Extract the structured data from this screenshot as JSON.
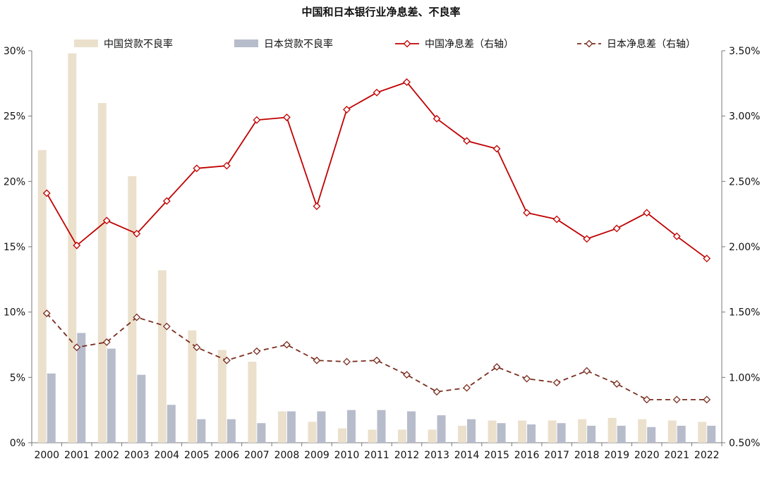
{
  "chart_data": {
    "type": "bar",
    "title": "中国和日本银行业净息差、不良率",
    "categories": [
      "2000",
      "2001",
      "2002",
      "2003",
      "2004",
      "2005",
      "2006",
      "2007",
      "2008",
      "2009",
      "2010",
      "2011",
      "2012",
      "2013",
      "2014",
      "2015",
      "2016",
      "2017",
      "2018",
      "2019",
      "2020",
      "2021",
      "2022"
    ],
    "left_axis": {
      "ylim": [
        0,
        30
      ],
      "ticks": [
        "0%",
        "5%",
        "10%",
        "15%",
        "20%",
        "25%",
        "30%"
      ]
    },
    "right_axis": {
      "ylim": [
        0.5,
        3.5
      ],
      "ticks": [
        "0.50%",
        "1.00%",
        "1.50%",
        "2.00%",
        "2.50%",
        "3.00%",
        "3.50%"
      ]
    },
    "series": [
      {
        "name": "中国贷款不良率",
        "kind": "bar",
        "axis": "left",
        "color": "#ebe0cc",
        "values": [
          22.4,
          29.8,
          26.0,
          20.4,
          13.2,
          8.6,
          7.1,
          6.2,
          2.4,
          1.6,
          1.1,
          1.0,
          1.0,
          1.0,
          1.3,
          1.7,
          1.7,
          1.7,
          1.8,
          1.9,
          1.8,
          1.7,
          1.6
        ]
      },
      {
        "name": "日本贷款不良率",
        "kind": "bar",
        "axis": "left",
        "color": "#b7bccb",
        "values": [
          5.3,
          8.4,
          7.2,
          5.2,
          2.9,
          1.8,
          1.8,
          1.5,
          2.4,
          2.4,
          2.5,
          2.5,
          2.4,
          2.1,
          1.8,
          1.5,
          1.4,
          1.5,
          1.3,
          1.3,
          1.2,
          1.3,
          1.3
        ]
      },
      {
        "name": "中国净息差（右轴）",
        "kind": "line",
        "axis": "right",
        "color": "#c00000",
        "dash": "solid",
        "values": [
          2.41,
          2.01,
          2.2,
          2.1,
          2.35,
          2.6,
          2.62,
          2.97,
          2.99,
          2.31,
          3.05,
          3.18,
          3.26,
          2.98,
          2.81,
          2.75,
          2.26,
          2.21,
          2.06,
          2.14,
          2.26,
          2.08,
          1.91
        ]
      },
      {
        "name": "日本净息差（右轴）",
        "kind": "line",
        "axis": "right",
        "color": "#7a2e1f",
        "dash": "dashed",
        "values": [
          1.49,
          1.23,
          1.27,
          1.46,
          1.39,
          1.23,
          1.13,
          1.2,
          1.25,
          1.13,
          1.12,
          1.13,
          1.02,
          0.89,
          0.92,
          1.08,
          0.99,
          0.96,
          1.05,
          0.95,
          0.83,
          0.83,
          0.83
        ]
      }
    ],
    "legend_placement": "top",
    "grid": false
  }
}
